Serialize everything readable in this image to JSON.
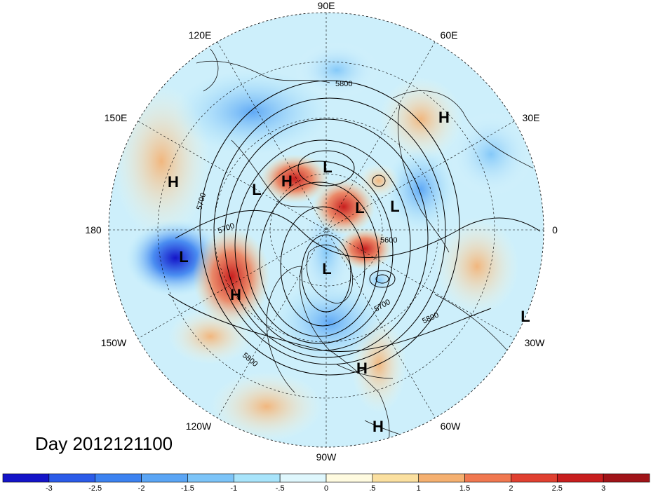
{
  "longitude_labels": [
    "90E",
    "60E",
    "30E",
    "0",
    "30W",
    "60W",
    "90W",
    "120W",
    "150W",
    "180",
    "150E",
    "120E"
  ],
  "centers": [
    {
      "type": "H",
      "name": "H-europe"
    },
    {
      "type": "H",
      "name": "H-west-pacific"
    },
    {
      "type": "L",
      "name": "L-east-siberia"
    },
    {
      "type": "H",
      "name": "H-siberia"
    },
    {
      "type": "L",
      "name": "L-north-siberia"
    },
    {
      "type": "L",
      "name": "L-kara-sea"
    },
    {
      "type": "L",
      "name": "L-scandinavia"
    },
    {
      "type": "L",
      "name": "L-aleutian"
    },
    {
      "type": "H",
      "name": "H-gulf-of-alaska"
    },
    {
      "type": "L",
      "name": "L-hudson-bay"
    },
    {
      "type": "L",
      "name": "L-atlantic"
    },
    {
      "type": "H",
      "name": "H-western-atlantic"
    },
    {
      "type": "H",
      "name": "H-caribbean"
    }
  ],
  "contour_labels": [
    "5800",
    "5700",
    "5700",
    "5600",
    "5700",
    "5800",
    "5800"
  ],
  "day_label": "Day 2012121100",
  "colorbar": {
    "ticks": [
      "-3",
      "-2.5",
      "-2",
      "-1.5",
      "-1",
      "-.5",
      "0",
      ".5",
      "1",
      "1.5",
      "2",
      "2.5",
      "3"
    ],
    "colors": [
      "#1414c8",
      "#2b5be8",
      "#3c82f0",
      "#5aa5f5",
      "#7cc4f8",
      "#a8e4fb",
      "#dff7fd",
      "#fffbe0",
      "#fbe0a0",
      "#f5b070",
      "#f07850",
      "#e04030",
      "#c81e1e",
      "#a01418"
    ]
  }
}
